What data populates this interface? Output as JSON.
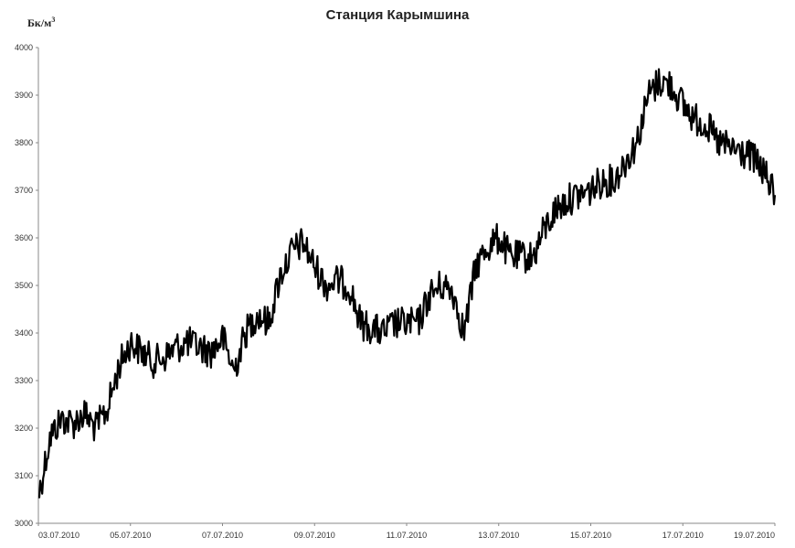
{
  "chart_data": {
    "type": "line",
    "title": "Станция Карымшина",
    "ylabel": "Бк/м",
    "ylabel_sup": "3",
    "ylim": [
      3000,
      4000
    ],
    "xlim": [
      "2010-07-03",
      "2010-07-19"
    ],
    "y_ticks": [
      "3000",
      "3100",
      "3200",
      "3300",
      "3400",
      "3500",
      "3600",
      "3700",
      "3800",
      "3900",
      "4000"
    ],
    "x_ticks": [
      "03.07.2010",
      "05.07.2010",
      "07.07.2010",
      "09.07.2010",
      "11.07.2010",
      "13.07.2010",
      "15.07.2010",
      "17.07.2010",
      "19.07.2010"
    ],
    "grid": false,
    "legend": false,
    "series": [
      {
        "color": "#000000",
        "x": [
          "2010-07-03",
          "2010-07-03T06:00",
          "2010-07-03T12:00",
          "2010-07-03T18:00",
          "2010-07-04",
          "2010-07-04T06:00",
          "2010-07-04T12:00",
          "2010-07-04T18:00",
          "2010-07-05",
          "2010-07-05T06:00",
          "2010-07-05T12:00",
          "2010-07-05T18:00",
          "2010-07-06",
          "2010-07-06T06:00",
          "2010-07-06T12:00",
          "2010-07-06T18:00",
          "2010-07-07",
          "2010-07-07T06:00",
          "2010-07-07T12:00",
          "2010-07-07T18:00",
          "2010-07-08",
          "2010-07-08T06:00",
          "2010-07-08T12:00",
          "2010-07-08T18:00",
          "2010-07-09",
          "2010-07-09T06:00",
          "2010-07-09T12:00",
          "2010-07-09T18:00",
          "2010-07-10",
          "2010-07-10T06:00",
          "2010-07-10T12:00",
          "2010-07-10T18:00",
          "2010-07-11",
          "2010-07-11T06:00",
          "2010-07-11T12:00",
          "2010-07-11T18:00",
          "2010-07-12",
          "2010-07-12T06:00",
          "2010-07-12T12:00",
          "2010-07-12T18:00",
          "2010-07-13",
          "2010-07-13T06:00",
          "2010-07-13T12:00",
          "2010-07-13T18:00",
          "2010-07-14",
          "2010-07-14T06:00",
          "2010-07-14T12:00",
          "2010-07-14T18:00",
          "2010-07-15",
          "2010-07-15T06:00",
          "2010-07-15T12:00",
          "2010-07-15T18:00",
          "2010-07-16",
          "2010-07-16T06:00",
          "2010-07-16T12:00",
          "2010-07-16T18:00",
          "2010-07-17",
          "2010-07-17T06:00",
          "2010-07-17T12:00",
          "2010-07-17T18:00",
          "2010-07-18",
          "2010-07-18T06:00",
          "2010-07-18T12:00",
          "2010-07-18T18:00",
          "2010-07-19"
        ],
        "values": [
          3055,
          3180,
          3220,
          3210,
          3230,
          3200,
          3240,
          3330,
          3380,
          3360,
          3340,
          3350,
          3370,
          3380,
          3370,
          3360,
          3390,
          3320,
          3400,
          3440,
          3420,
          3520,
          3570,
          3590,
          3540,
          3500,
          3510,
          3500,
          3420,
          3410,
          3400,
          3420,
          3420,
          3420,
          3480,
          3500,
          3490,
          3400,
          3540,
          3580,
          3600,
          3560,
          3560,
          3560,
          3620,
          3660,
          3680,
          3690,
          3700,
          3720,
          3720,
          3760,
          3800,
          3900,
          3930,
          3920,
          3880,
          3850,
          3840,
          3800,
          3790,
          3780,
          3770,
          3740,
          3690
        ]
      }
    ]
  }
}
